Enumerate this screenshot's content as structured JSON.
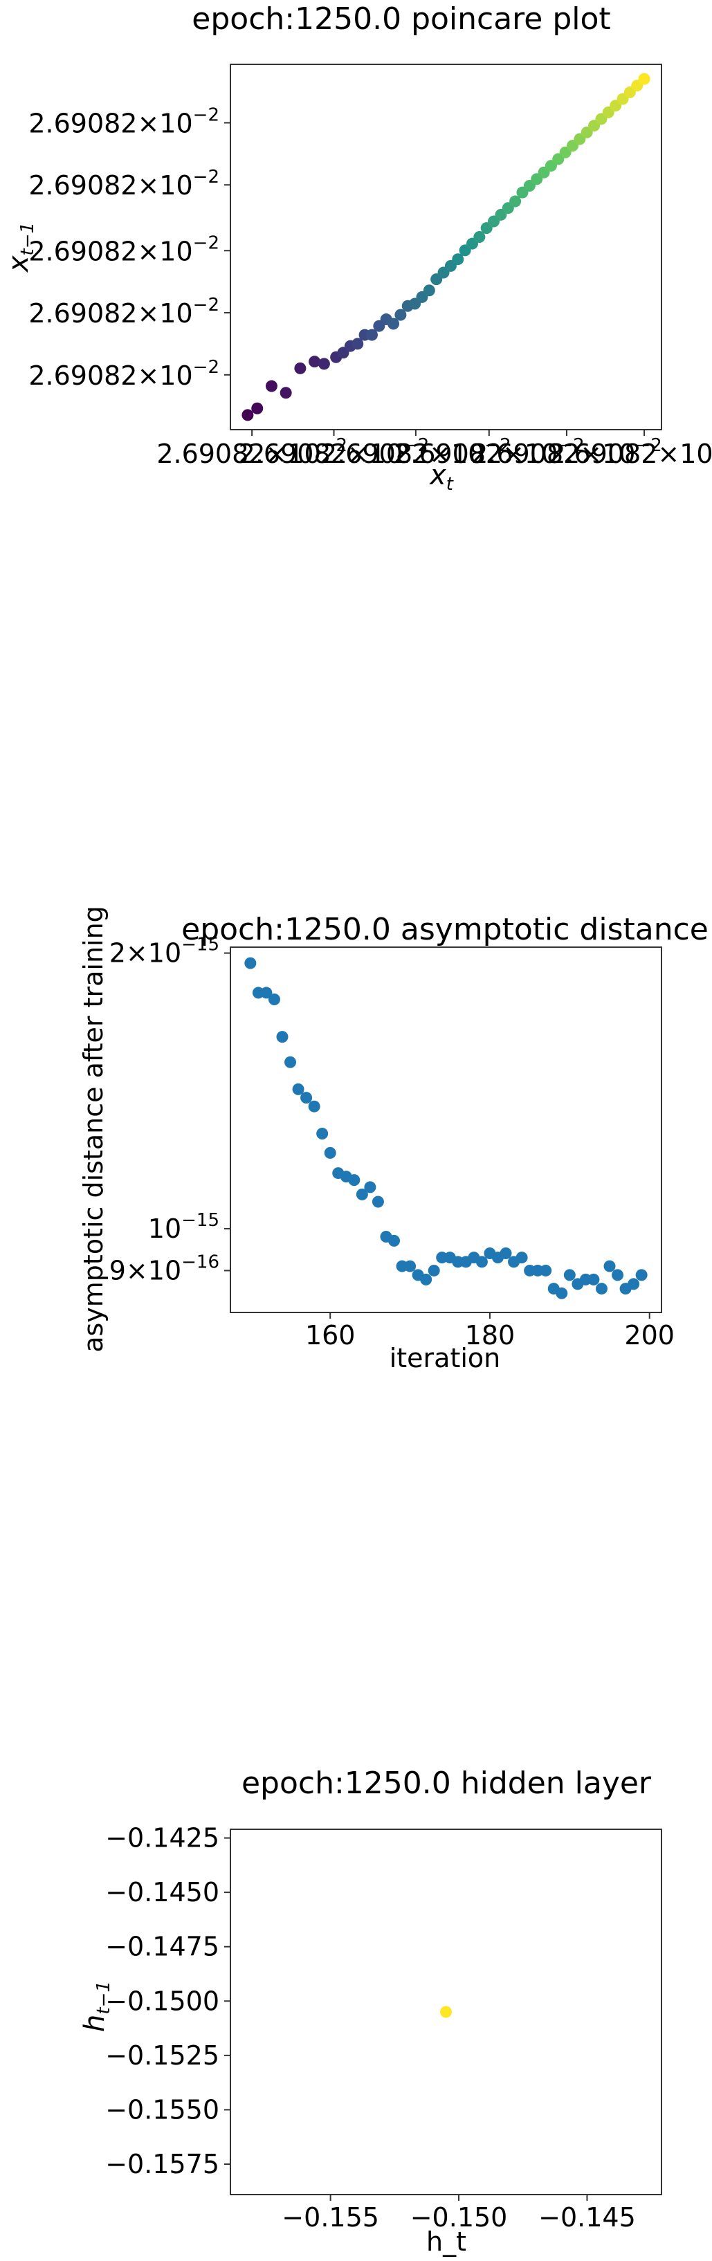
{
  "chart_data": [
    {
      "type": "scatter",
      "title": "epoch:1250.0 poincare plot",
      "xlabel": "x_t",
      "ylabel": "x_{t-1}",
      "x_scale": "log",
      "y_scale": "log",
      "x_tick_labels": [
        "2.69082 × 10^-2",
        "2.69082 × 10^-2",
        "2.69082 × 10^-2",
        "2.69082 × 10^-2",
        "2.69082 × 10^-2",
        "2.69082 × 10^-2"
      ],
      "y_tick_labels": [
        "2.69082 × 10^-2",
        "2.69082 × 10^-2",
        "2.69082 × 10^-2",
        "2.69082 × 10^-2",
        "2.69082 × 10^-2"
      ],
      "colormap": "viridis",
      "points": [
        [
          0.5,
          2.0
        ],
        [
          0.9,
          2.3
        ],
        [
          1.5,
          3.3
        ],
        [
          2.1,
          3.0
        ],
        [
          2.7,
          4.1
        ],
        [
          3.3,
          4.4
        ],
        [
          3.7,
          4.3
        ],
        [
          4.2,
          4.6
        ],
        [
          4.5,
          4.8
        ],
        [
          4.8,
          5.1
        ],
        [
          5.1,
          5.2
        ],
        [
          5.4,
          5.6
        ],
        [
          5.7,
          5.6
        ],
        [
          6.0,
          6.0
        ],
        [
          6.3,
          6.3
        ],
        [
          6.6,
          6.1
        ],
        [
          6.9,
          6.5
        ],
        [
          7.2,
          6.9
        ],
        [
          7.5,
          7.0
        ],
        [
          7.8,
          7.3
        ],
        [
          8.1,
          7.6
        ],
        [
          8.4,
          8.1
        ],
        [
          8.7,
          8.4
        ],
        [
          9.0,
          8.7
        ],
        [
          9.3,
          9.0
        ],
        [
          9.6,
          9.4
        ],
        [
          9.9,
          9.7
        ],
        [
          10.2,
          10.0
        ],
        [
          10.5,
          10.4
        ],
        [
          10.8,
          10.7
        ],
        [
          11.1,
          11.0
        ],
        [
          11.4,
          11.3
        ],
        [
          11.7,
          11.6
        ],
        [
          12.0,
          12.0
        ],
        [
          12.3,
          12.3
        ],
        [
          12.6,
          12.6
        ],
        [
          12.9,
          12.9
        ],
        [
          13.2,
          13.2
        ],
        [
          13.5,
          13.5
        ],
        [
          13.8,
          13.8
        ],
        [
          14.1,
          14.1
        ],
        [
          14.4,
          14.4
        ],
        [
          14.7,
          14.7
        ],
        [
          15.0,
          15.0
        ],
        [
          15.3,
          15.3
        ],
        [
          15.6,
          15.6
        ],
        [
          15.9,
          15.9
        ],
        [
          16.2,
          16.2
        ],
        [
          16.5,
          16.5
        ],
        [
          16.8,
          16.8
        ],
        [
          17.1,
          17.1
        ]
      ]
    },
    {
      "type": "scatter",
      "title": "epoch:1250.0 asymptotic distance",
      "xlabel": "iteration",
      "ylabel": "asymptotic distance after training",
      "y_scale": "log",
      "x_ticks": [
        160,
        180,
        200
      ],
      "y_tick_labels": [
        "2 × 10^-15",
        "10^-15",
        "9 × 10^-16"
      ],
      "color": "#1f77b4",
      "x": [
        150,
        151,
        152,
        153,
        154,
        155,
        156,
        157,
        158,
        159,
        160,
        161,
        162,
        163,
        164,
        165,
        166,
        167,
        168,
        169,
        170,
        171,
        172,
        173,
        174,
        175,
        176,
        177,
        178,
        179,
        180,
        181,
        182,
        183,
        184,
        185,
        186,
        187,
        188,
        189,
        190,
        191,
        192,
        193,
        194,
        195,
        196,
        197,
        198,
        199
      ],
      "y": [
        1.95e-15,
        1.81e-15,
        1.81e-15,
        1.78e-15,
        1.62e-15,
        1.52e-15,
        1.42e-15,
        1.39e-15,
        1.36e-15,
        1.27e-15,
        1.21e-15,
        1.15e-15,
        1.14e-15,
        1.13e-15,
        1.09e-15,
        1.11e-15,
        1.07e-15,
        9.8e-16,
        9.7e-16,
        9.1e-16,
        9.1e-16,
        8.9e-16,
        8.8e-16,
        9e-16,
        9.3e-16,
        9.3e-16,
        9.2e-16,
        9.2e-16,
        9.3e-16,
        9.2e-16,
        9.4e-16,
        9.3e-16,
        9.4e-16,
        9.2e-16,
        9.3e-16,
        9e-16,
        9e-16,
        9e-16,
        8.6e-16,
        8.5e-16,
        8.9e-16,
        8.7e-16,
        8.8e-16,
        8.8e-16,
        8.6e-16,
        9.1e-16,
        8.9e-16,
        8.6e-16,
        8.7e-16,
        8.9e-16
      ]
    },
    {
      "type": "scatter",
      "title": "epoch:1250.0 hidden layer",
      "xlabel": "h_t",
      "ylabel": "h_{t-1}",
      "x_ticks": [
        -0.155,
        -0.15,
        -0.145
      ],
      "y_ticks": [
        -0.1425,
        -0.145,
        -0.1475,
        -0.15,
        -0.1525,
        -0.155,
        -0.1575
      ],
      "xlim": [
        -0.1589,
        -0.1421
      ],
      "ylim": [
        -0.1589,
        -0.1421
      ],
      "color": "#fde725",
      "points": [
        [
          -0.1505,
          -0.1505
        ]
      ]
    }
  ]
}
